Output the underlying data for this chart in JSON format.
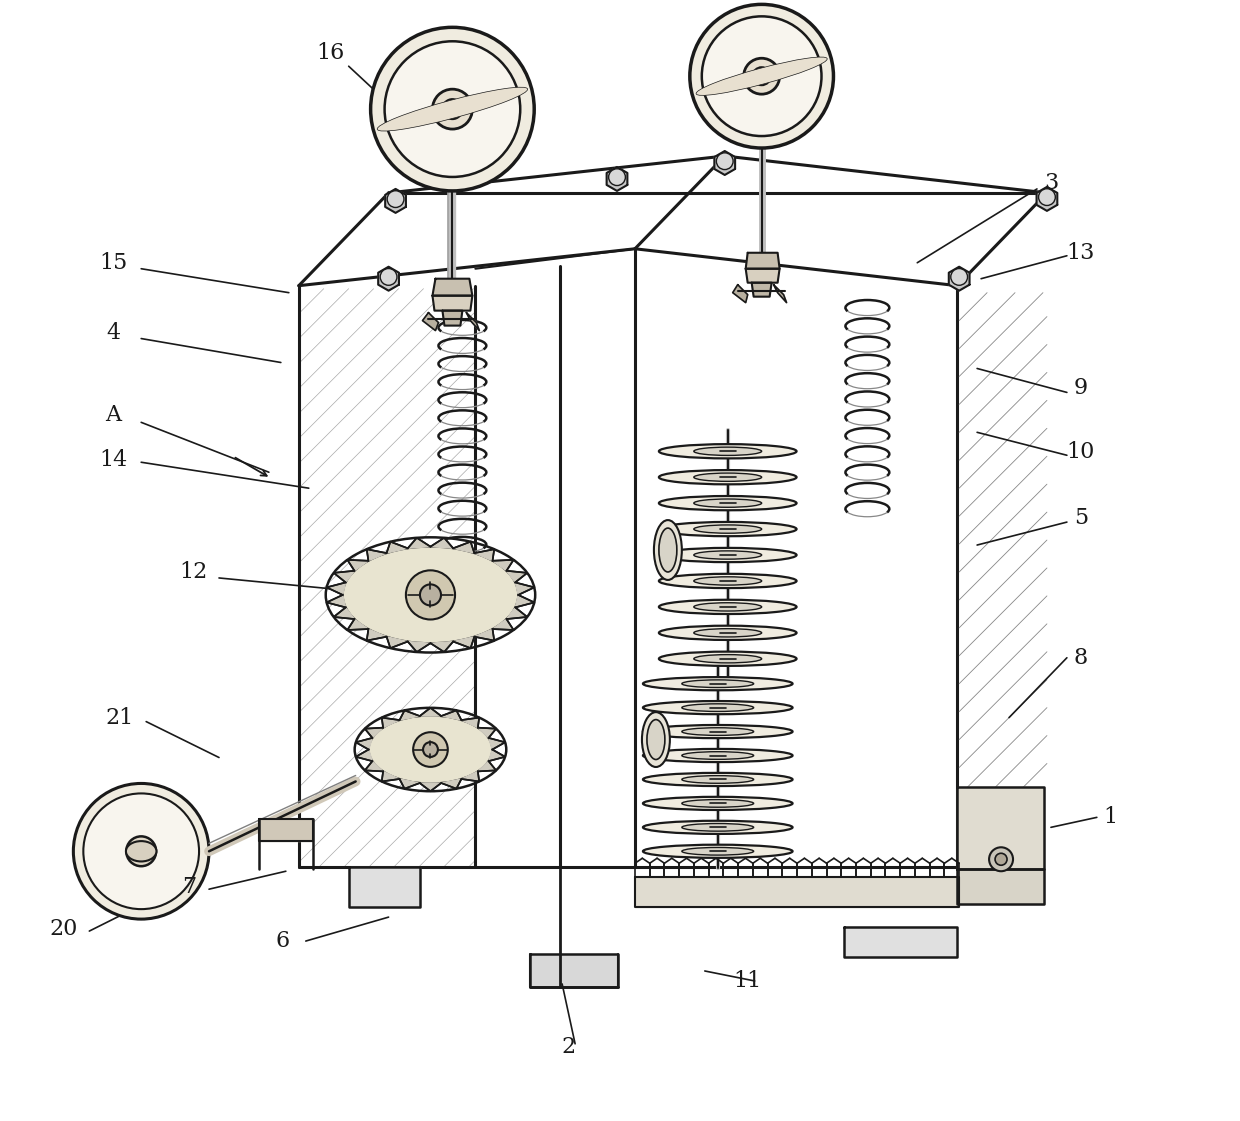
{
  "bg": "#ffffff",
  "lc": "#1a1a1a",
  "lw": 1.6,
  "thin": 0.8,
  "thick": 2.2,
  "labels": [
    [
      "16",
      330,
      52
    ],
    [
      "15",
      112,
      262
    ],
    [
      "4",
      112,
      332
    ],
    [
      "A",
      112,
      415
    ],
    [
      "14",
      112,
      460
    ],
    [
      "12",
      192,
      572
    ],
    [
      "21",
      118,
      718
    ],
    [
      "20",
      62,
      930
    ],
    [
      "7",
      188,
      888
    ],
    [
      "6",
      282,
      942
    ],
    [
      "2",
      568,
      1048
    ],
    [
      "11",
      748,
      982
    ],
    [
      "1",
      1112,
      818
    ],
    [
      "8",
      1082,
      658
    ],
    [
      "5",
      1082,
      518
    ],
    [
      "10",
      1082,
      452
    ],
    [
      "9",
      1082,
      388
    ],
    [
      "13",
      1082,
      252
    ],
    [
      "3",
      1052,
      182
    ]
  ],
  "leaders": [
    [
      "16",
      348,
      65,
      420,
      132
    ],
    [
      "15",
      140,
      268,
      288,
      292
    ],
    [
      "4",
      140,
      338,
      280,
      362
    ],
    [
      "A",
      140,
      422,
      268,
      472
    ],
    [
      "14",
      140,
      462,
      308,
      488
    ],
    [
      "12",
      218,
      578,
      342,
      590
    ],
    [
      "21",
      145,
      722,
      218,
      758
    ],
    [
      "20",
      88,
      932,
      162,
      895
    ],
    [
      "7",
      208,
      890,
      285,
      872
    ],
    [
      "6",
      305,
      942,
      388,
      918
    ],
    [
      "2",
      575,
      1045,
      562,
      985
    ],
    [
      "11",
      755,
      982,
      705,
      972
    ],
    [
      "1",
      1098,
      818,
      1052,
      828
    ],
    [
      "8",
      1068,
      658,
      1010,
      718
    ],
    [
      "5",
      1068,
      522,
      978,
      545
    ],
    [
      "10",
      1068,
      455,
      978,
      432
    ],
    [
      "9",
      1068,
      392,
      978,
      368
    ],
    [
      "13",
      1068,
      255,
      982,
      278
    ],
    [
      "3",
      1038,
      188,
      918,
      262
    ]
  ]
}
